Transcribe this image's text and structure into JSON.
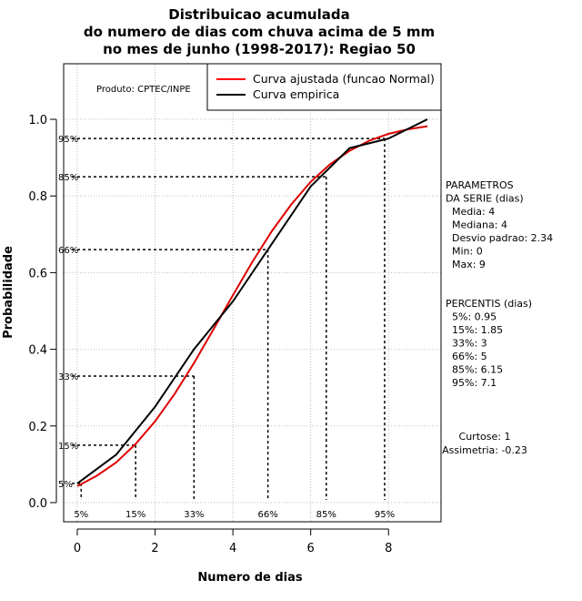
{
  "chart_data": {
    "type": "line",
    "title_lines": [
      "Distribuicao acumulada",
      "do numero de dias com chuva acima de 5 mm",
      "no mes de junho (1998-2017): Regiao 50"
    ],
    "xlabel": "Numero de dias",
    "ylabel": "Probabilidade",
    "xlim": [
      -0.35,
      9.35
    ],
    "ylim": [
      -0.05,
      1.145
    ],
    "xticks": [
      0,
      2,
      4,
      6,
      8
    ],
    "xtick_labels": [
      "0",
      "2",
      "4",
      "6",
      "8"
    ],
    "yticks": [
      0.0,
      0.2,
      0.4,
      0.6,
      0.8,
      1.0
    ],
    "ytick_labels": [
      "0.0",
      "0.2",
      "0.4",
      "0.6",
      "0.8",
      "1.0"
    ],
    "grid": true,
    "product_label": "Produto: CPTEC/INPE",
    "legend": [
      {
        "label": "Curva ajustada (funcao Normal)",
        "color": "#ff0000"
      },
      {
        "label": "Curva empirica",
        "color": "#000000"
      }
    ],
    "series": [
      {
        "name": "Curva ajustada (funcao Normal)",
        "color": "#dd0000",
        "x": [
          0,
          0.5,
          1,
          1.5,
          2,
          2.5,
          3,
          3.5,
          4,
          4.5,
          5,
          5.5,
          6,
          6.5,
          7,
          7.5,
          8,
          8.5,
          9
        ],
        "y": [
          0.043,
          0.07,
          0.105,
          0.153,
          0.212,
          0.283,
          0.364,
          0.452,
          0.541,
          0.628,
          0.708,
          0.778,
          0.837,
          0.883,
          0.918,
          0.944,
          0.962,
          0.974,
          0.982
        ]
      },
      {
        "name": "Curva empirica",
        "color": "#000000",
        "x": [
          0,
          1,
          2,
          3,
          4,
          5,
          6,
          7,
          8,
          9
        ],
        "y": [
          0.05,
          0.125,
          0.25,
          0.4,
          0.525,
          0.675,
          0.825,
          0.925,
          0.95,
          1.0
        ]
      }
    ],
    "percentile_guides": [
      {
        "label": "5%",
        "x": 0.1,
        "y": 0.05
      },
      {
        "label": "15%",
        "x": 1.5,
        "y": 0.15
      },
      {
        "label": "33%",
        "x": 3.0,
        "y": 0.33
      },
      {
        "label": "66%",
        "x": 4.9,
        "y": 0.66
      },
      {
        "label": "85%",
        "x": 6.4,
        "y": 0.85
      },
      {
        "label": "95%",
        "x": 7.9,
        "y": 0.95
      }
    ],
    "parameters_block": [
      "PARAMETROS",
      "DA SERIE (dias)",
      "  Media: 4",
      "  Mediana: 4",
      "  Desvio padrao: 2.34",
      "  Min: 0",
      "  Max: 9"
    ],
    "percentis_block": [
      "PERCENTIS (dias)",
      "  5%: 0.95",
      "  15%: 1.85",
      "  33%: 3",
      "  66%: 5",
      "  85%: 6.15",
      "  95%: 7.1"
    ],
    "stats_block": [
      "Curtose: 1",
      "Assimetria: -0.23"
    ]
  }
}
